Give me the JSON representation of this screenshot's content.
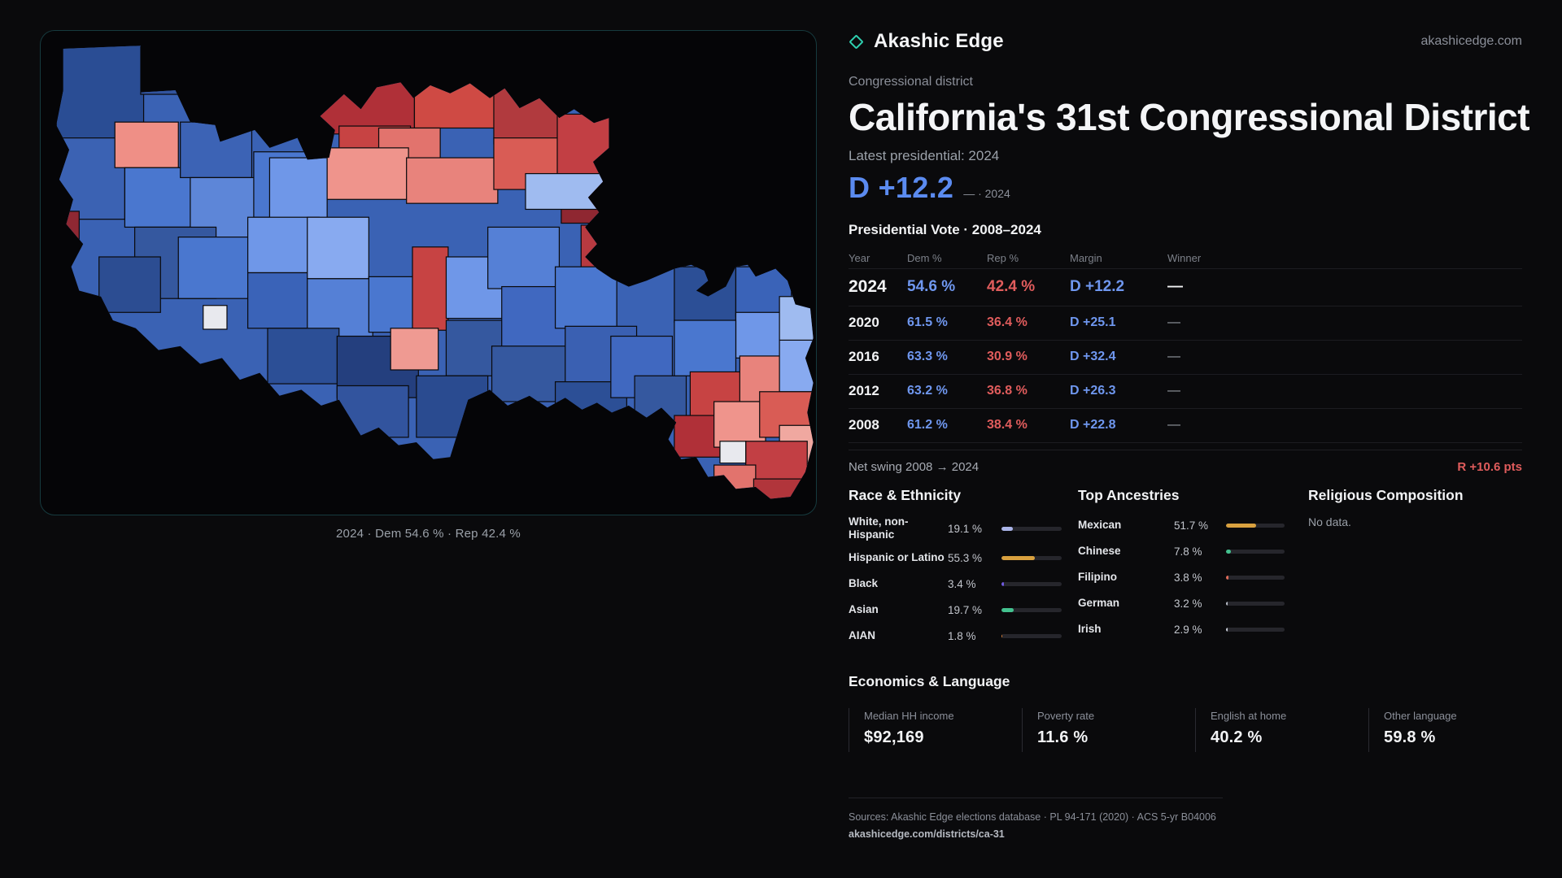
{
  "theme": {
    "dem_blue": "#5b8bf0",
    "rep_red": "#e05c5c",
    "accent_teal": "#2fd0b0"
  },
  "brand": {
    "name": "Akashic Edge",
    "site": "akashicedge.com"
  },
  "header": {
    "kicker": "Congressional district",
    "title": "California's 31st Congressional District",
    "latest_label": "Latest presidential: 2024",
    "headline_margin": "D +12.2",
    "headline_note": "— · 2024"
  },
  "map": {
    "caption": "2024 · Dem 54.6 % · Rep 42.4 %"
  },
  "vote_table": {
    "title": "Presidential Vote · 2008–2024",
    "columns": [
      "Year",
      "Dem %",
      "Rep %",
      "Margin",
      "Winner"
    ],
    "rows": [
      {
        "year": "2024",
        "dem": "54.6 %",
        "rep": "42.4 %",
        "margin": "D +12.2",
        "winner": "—"
      },
      {
        "year": "2020",
        "dem": "61.5 %",
        "rep": "36.4 %",
        "margin": "D +25.1",
        "winner": "—"
      },
      {
        "year": "2016",
        "dem": "63.3 %",
        "rep": "30.9 %",
        "margin": "D +32.4",
        "winner": "—"
      },
      {
        "year": "2012",
        "dem": "63.2 %",
        "rep": "36.8 %",
        "margin": "D +26.3",
        "winner": "—"
      },
      {
        "year": "2008",
        "dem": "61.2 %",
        "rep": "38.4 %",
        "margin": "D +22.8",
        "winner": "—"
      }
    ],
    "net_swing_label": "Net swing 2008 → 2024",
    "net_swing_value": "R +10.6 pts"
  },
  "race": {
    "title": "Race & Ethnicity",
    "items": [
      {
        "label": "White, non-Hispanic",
        "value": "19.1 %",
        "pct": 19.1,
        "color": "#aab4e8"
      },
      {
        "label": "Hispanic or Latino",
        "value": "55.3 %",
        "pct": 55.3,
        "color": "#d9a13f"
      },
      {
        "label": "Black",
        "value": "3.4 %",
        "pct": 3.4,
        "color": "#6f5ae0"
      },
      {
        "label": "Asian",
        "value": "19.7 %",
        "pct": 19.7,
        "color": "#43c28f"
      },
      {
        "label": "AIAN",
        "value": "1.8 %",
        "pct": 1.8,
        "color": "#d97f35"
      }
    ]
  },
  "ancestries": {
    "title": "Top Ancestries",
    "items": [
      {
        "label": "Mexican",
        "value": "51.7 %",
        "pct": 51.7,
        "color": "#d9a13f"
      },
      {
        "label": "Chinese",
        "value": "7.8 %",
        "pct": 7.8,
        "color": "#43c28f"
      },
      {
        "label": "Filipino",
        "value": "3.8 %",
        "pct": 3.8,
        "color": "#e06c5a"
      },
      {
        "label": "German",
        "value": "3.2 %",
        "pct": 3.2,
        "color": "#b9bec8"
      },
      {
        "label": "Irish",
        "value": "2.9 %",
        "pct": 2.9,
        "color": "#c9ced8"
      }
    ]
  },
  "religion": {
    "title": "Religious Composition",
    "empty": "No data."
  },
  "economics": {
    "title": "Economics & Language",
    "stats": [
      {
        "label": "Median HH income",
        "value": "$92,169"
      },
      {
        "label": "Poverty rate",
        "value": "11.6 %"
      },
      {
        "label": "English at home",
        "value": "40.2 %"
      },
      {
        "label": "Other language",
        "value": "59.8 %"
      }
    ]
  },
  "footer": {
    "sources": "Sources: Akashic Edge elections database · PL 94-171 (2020) · ACS 5-yr B04006",
    "permalink": "akashicedge.com/districts/ca-31"
  }
}
